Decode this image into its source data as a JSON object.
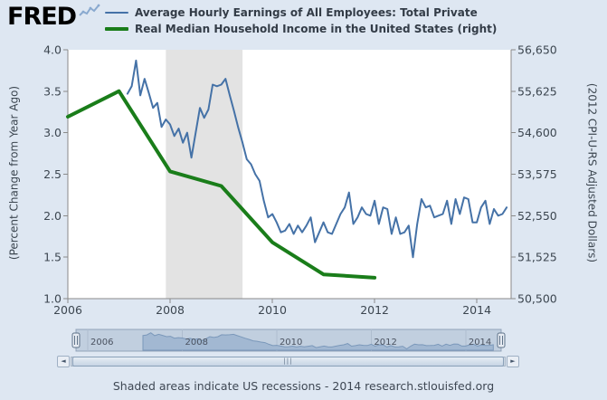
{
  "header": {
    "logo_text": "FRED",
    "legend": [
      {
        "label": "Average Hourly Earnings of All Employees: Total Private",
        "color": "#4572a7"
      },
      {
        "label": "Real Median Household Income in the United States (right)",
        "color": "#1a7d1a"
      }
    ]
  },
  "colors": {
    "background": "#dee7f2",
    "plot_background": "#ffffff",
    "recession_band": "#e3e3e3",
    "axis_line": "#8a8a8a",
    "axis_text": "#3c4650",
    "blue_series": "#4572a7",
    "green_series": "#1a7d1a",
    "nav_track": "#d4deea",
    "nav_area_fill": "#aec3da",
    "nav_area_line": "#7e9cbc"
  },
  "chart_data": {
    "type": "line",
    "title": "",
    "x_axis": {
      "range": [
        2006,
        2014.67
      ],
      "tick_years": [
        2006,
        2008,
        2010,
        2012,
        2014
      ]
    },
    "left_axis": {
      "label": "(Percent Change from Year Ago)",
      "range": [
        1.0,
        4.0
      ],
      "ticks": [
        1.0,
        1.5,
        2.0,
        2.5,
        3.0,
        3.5,
        4.0
      ]
    },
    "right_axis": {
      "label": "(2012 CPI-U-RS Adjusted Dollars)",
      "range": [
        50500,
        56650
      ],
      "ticks": [
        50500,
        51525,
        52550,
        53575,
        54600,
        55625,
        56650
      ],
      "tick_labels": [
        "50,500",
        "51,525",
        "52,550",
        "53,575",
        "54,600",
        "55,625",
        "56,650"
      ]
    },
    "recession_bands": [
      [
        2007.917,
        2009.417
      ]
    ],
    "series": [
      {
        "name": "Average Hourly Earnings of All Employees: Total Private",
        "axis": "left",
        "color": "#4572a7",
        "line_width": 2,
        "x_start": 2007.1667,
        "x_step": 0.083333,
        "values": [
          3.47,
          3.56,
          3.87,
          3.45,
          3.65,
          3.48,
          3.3,
          3.36,
          3.07,
          3.16,
          3.1,
          2.96,
          3.05,
          2.88,
          3.0,
          2.7,
          3.0,
          3.3,
          3.18,
          3.28,
          3.58,
          3.56,
          3.58,
          3.65,
          3.45,
          3.26,
          3.06,
          2.88,
          2.68,
          2.62,
          2.5,
          2.42,
          2.18,
          1.98,
          2.02,
          1.92,
          1.8,
          1.82,
          1.9,
          1.78,
          1.88,
          1.8,
          1.88,
          1.98,
          1.68,
          1.8,
          1.92,
          1.8,
          1.78,
          1.9,
          2.02,
          2.1,
          2.28,
          1.9,
          1.98,
          2.1,
          2.02,
          2.0,
          2.18,
          1.9,
          2.1,
          2.08,
          1.78,
          1.98,
          1.78,
          1.8,
          1.88,
          1.5,
          1.9,
          2.2,
          2.1,
          2.12,
          1.98,
          2.0,
          2.02,
          2.18,
          1.9,
          2.2,
          2.02,
          2.22,
          2.2,
          1.92,
          1.92,
          2.1,
          2.18,
          1.9,
          2.08,
          2.0,
          2.02,
          2.1
        ]
      },
      {
        "name": "Real Median Household Income in the United States (right)",
        "axis": "right",
        "color": "#1a7d1a",
        "line_width": 4,
        "x": [
          2006,
          2007,
          2008,
          2009,
          2010,
          2011,
          2012
        ],
        "values": [
          54995,
          55627,
          53644,
          53285,
          51892,
          51100,
          51017
        ]
      }
    ]
  },
  "navigator": {
    "range": [
      2005.75,
      2014.75
    ],
    "selected": [
      2005.75,
      2014.75
    ],
    "tick_years": [
      2006,
      2008,
      2010,
      2012,
      2014
    ]
  },
  "scrollbar": {
    "left_arrow": "◄",
    "right_arrow": "►",
    "grip": "|||"
  },
  "footer": {
    "text": "Shaded areas indicate US recessions - 2014 research.stlouisfed.org"
  }
}
